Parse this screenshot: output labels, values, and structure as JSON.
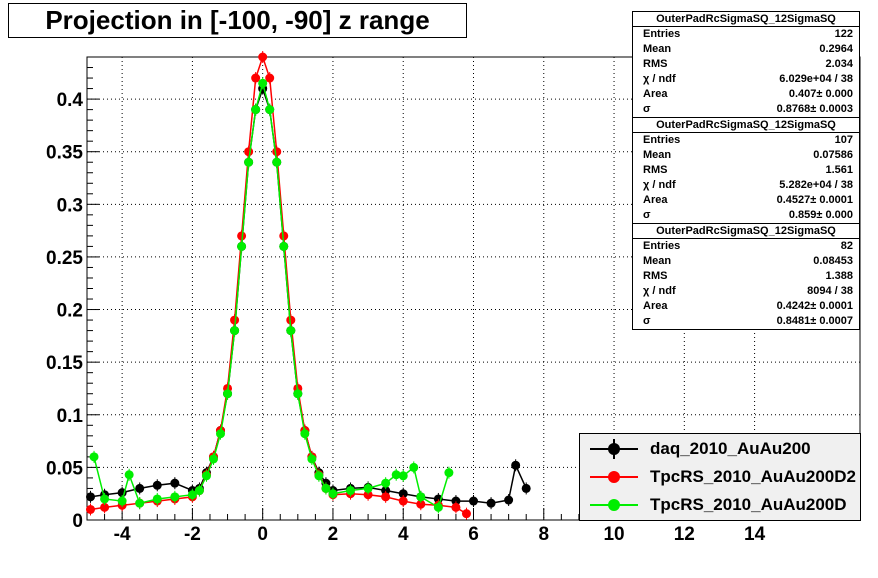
{
  "chart_data": {
    "type": "scatter",
    "title": "Projection in [-100, -90] z range",
    "xlim": [
      -5,
      17
    ],
    "ylim": [
      0,
      0.44
    ],
    "x_ticks": [
      -4,
      -2,
      0,
      2,
      4,
      6,
      8,
      10,
      12,
      14
    ],
    "x_tick_labels": [
      "-4",
      "-2",
      "0",
      "2",
      "4",
      "6",
      "8",
      "10",
      "12",
      "14"
    ],
    "y_ticks": [
      0,
      0.05,
      0.1,
      0.15,
      0.2,
      0.25,
      0.3,
      0.35,
      0.4
    ],
    "y_tick_labels": [
      "0",
      "0.05",
      "0.1",
      "0.15",
      "0.2",
      "0.25",
      "0.3",
      "0.35",
      "0.4"
    ],
    "grid": true,
    "legend_position": "bottom-right",
    "series": [
      {
        "name": "daq_2010_AuAu200",
        "color": "#000000",
        "x": [
          -4.9,
          -4.5,
          -4.0,
          -3.5,
          -3.0,
          -2.5,
          -2.0,
          -1.8,
          -1.6,
          -1.4,
          -1.2,
          -1.0,
          -0.8,
          -0.6,
          -0.4,
          -0.2,
          0.0,
          0.2,
          0.4,
          0.6,
          0.8,
          1.0,
          1.2,
          1.4,
          1.6,
          1.8,
          2.0,
          2.5,
          3.0,
          3.5,
          4.0,
          4.5,
          5.0,
          5.5,
          6.0,
          6.5,
          7.0,
          7.2,
          7.5
        ],
        "y": [
          0.022,
          0.024,
          0.026,
          0.03,
          0.033,
          0.035,
          0.028,
          0.03,
          0.045,
          0.06,
          0.085,
          0.12,
          0.18,
          0.26,
          0.34,
          0.39,
          0.41,
          0.39,
          0.34,
          0.26,
          0.18,
          0.12,
          0.085,
          0.06,
          0.045,
          0.035,
          0.028,
          0.03,
          0.031,
          0.028,
          0.025,
          0.022,
          0.02,
          0.018,
          0.018,
          0.016,
          0.019,
          0.052,
          0.03
        ]
      },
      {
        "name": "TpcRS_2010_AuAu200D2",
        "color": "#ff0000",
        "x": [
          -4.9,
          -4.5,
          -4.0,
          -3.5,
          -3.0,
          -2.5,
          -2.0,
          -1.8,
          -1.6,
          -1.4,
          -1.2,
          -1.0,
          -0.8,
          -0.6,
          -0.4,
          -0.2,
          0.0,
          0.2,
          0.4,
          0.6,
          0.8,
          1.0,
          1.2,
          1.4,
          1.6,
          1.8,
          2.0,
          2.5,
          3.0,
          3.5,
          4.0,
          4.5,
          5.0,
          5.5,
          5.8
        ],
        "y": [
          0.01,
          0.012,
          0.014,
          0.016,
          0.018,
          0.02,
          0.022,
          0.028,
          0.043,
          0.06,
          0.085,
          0.125,
          0.19,
          0.27,
          0.35,
          0.42,
          0.44,
          0.42,
          0.35,
          0.27,
          0.19,
          0.125,
          0.085,
          0.06,
          0.043,
          0.03,
          0.024,
          0.025,
          0.024,
          0.022,
          0.018,
          0.015,
          0.014,
          0.012,
          0.006
        ]
      },
      {
        "name": "TpcRS_2010_AuAu200D",
        "color": "#00ee00",
        "x": [
          -4.8,
          -4.5,
          -4.0,
          -3.8,
          -3.5,
          -3.0,
          -2.5,
          -2.0,
          -1.8,
          -1.6,
          -1.4,
          -1.2,
          -1.0,
          -0.8,
          -0.6,
          -0.4,
          -0.2,
          0.0,
          0.2,
          0.4,
          0.6,
          0.8,
          1.0,
          1.2,
          1.4,
          1.6,
          1.8,
          2.0,
          2.5,
          3.0,
          3.5,
          3.8,
          4.0,
          4.3,
          4.5,
          5.0,
          5.3
        ],
        "y": [
          0.06,
          0.02,
          0.018,
          0.043,
          0.016,
          0.02,
          0.022,
          0.024,
          0.028,
          0.042,
          0.058,
          0.082,
          0.12,
          0.18,
          0.26,
          0.34,
          0.39,
          0.415,
          0.39,
          0.34,
          0.26,
          0.18,
          0.12,
          0.082,
          0.058,
          0.042,
          0.03,
          0.025,
          0.028,
          0.03,
          0.035,
          0.043,
          0.042,
          0.05,
          0.022,
          0.012,
          0.045
        ]
      }
    ]
  },
  "stat_boxes": [
    {
      "header": "OuterPadRcSigmaSQ_12SigmaSQ",
      "rows": [
        {
          "label": "Entries",
          "value": "122"
        },
        {
          "label": "Mean",
          "value": "0.2964"
        },
        {
          "label": "RMS",
          "value": "2.034"
        },
        {
          "label": "χ  / ndf",
          "value": "6.029e+04 / 38"
        },
        {
          "label": "Area",
          "value": "0.407± 0.000"
        },
        {
          "label": "σ",
          "value": "0.8768± 0.0003"
        }
      ]
    },
    {
      "header": "OuterPadRcSigmaSQ_12SigmaSQ",
      "rows": [
        {
          "label": "Entries",
          "value": "107"
        },
        {
          "label": "Mean",
          "value": "0.07586"
        },
        {
          "label": "RMS",
          "value": "1.561"
        },
        {
          "label": "χ  / ndf",
          "value": "5.282e+04 / 38"
        },
        {
          "label": "Area",
          "value": "0.4527± 0.0001"
        },
        {
          "label": "σ",
          "value": "0.859± 0.000"
        }
      ]
    },
    {
      "header": "OuterPadRcSigmaSQ_12SigmaSQ",
      "rows": [
        {
          "label": "Entries",
          "value": "82"
        },
        {
          "label": "Mean",
          "value": "0.08453"
        },
        {
          "label": "RMS",
          "value": "1.388"
        },
        {
          "label": "χ  / ndf",
          "value": "8094 / 38"
        },
        {
          "label": "Area",
          "value": "0.4242± 0.0001"
        },
        {
          "label": "σ",
          "value": "0.8481± 0.0007"
        }
      ]
    }
  ],
  "legend": [
    {
      "label": "daq_2010_AuAu200",
      "color": "#000000"
    },
    {
      "label": "TpcRS_2010_AuAu200D2",
      "color": "#ff0000"
    },
    {
      "label": "TpcRS_2010_AuAu200D",
      "color": "#00ee00"
    }
  ]
}
